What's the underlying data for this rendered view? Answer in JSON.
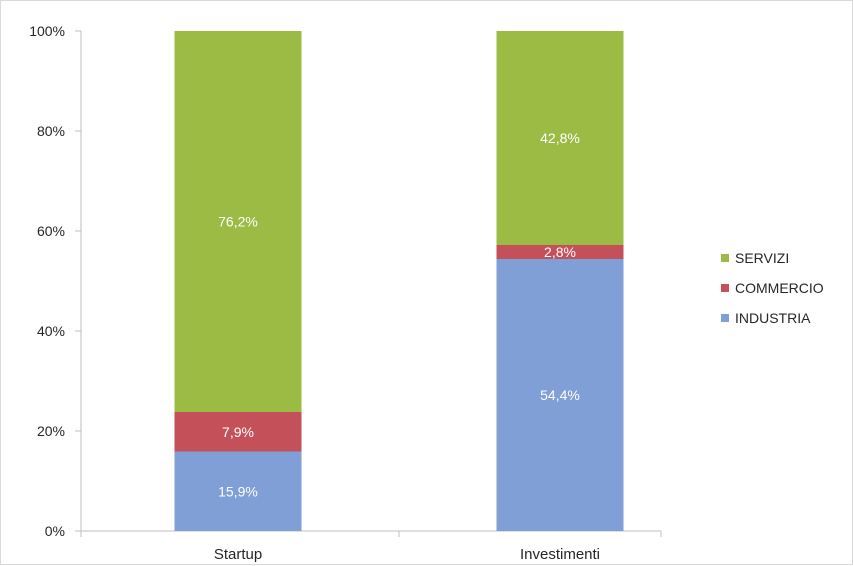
{
  "chart_data": {
    "type": "bar",
    "stacked": true,
    "percent_stacked": true,
    "categories": [
      "Startup",
      "Investimenti"
    ],
    "series": [
      {
        "name": "INDUSTRIA",
        "values": [
          15.9,
          54.4
        ],
        "labels": [
          "15,9%",
          "54,4%"
        ],
        "color": "#7f9fd6"
      },
      {
        "name": "COMMERCIO",
        "values": [
          7.9,
          2.8
        ],
        "labels": [
          "7,9%",
          "2,8%"
        ],
        "color": "#c4505a"
      },
      {
        "name": "SERVIZI",
        "values": [
          76.2,
          42.8
        ],
        "labels": [
          "76,2%",
          "42,8%"
        ],
        "color": "#9bbb45"
      }
    ],
    "ylim": [
      0,
      100
    ],
    "yticks": [
      0,
      20,
      40,
      60,
      80,
      100
    ],
    "ytick_labels": [
      "0%",
      "20%",
      "40%",
      "60%",
      "80%",
      "100%"
    ],
    "grid": false,
    "legend_position": "right",
    "legend_order": [
      "SERVIZI",
      "COMMERCIO",
      "INDUSTRIA"
    ]
  }
}
